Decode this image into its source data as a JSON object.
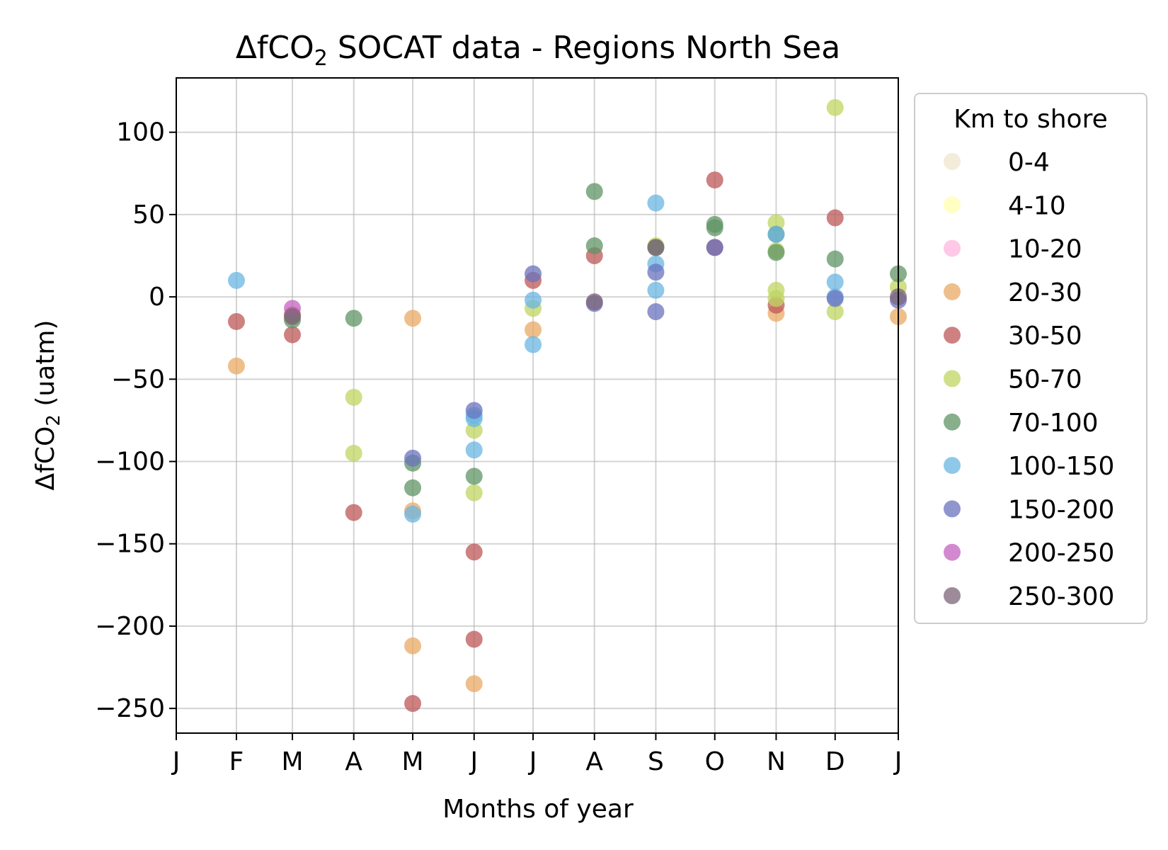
{
  "chart_data": {
    "type": "scatter",
    "title_main": "ΔfCO",
    "title_sub": "2",
    "title_rest": " SOCAT data - Regions North Sea",
    "xlabel": "Months of year",
    "ylabel_main": "ΔfCO",
    "ylabel_sub": "2",
    "ylabel_rest": " (uatm)",
    "xlim": [
      0,
      12
    ],
    "ylim": [
      -265,
      133
    ],
    "x_ticks": [
      {
        "value": 0,
        "label": "J"
      },
      {
        "value": 1,
        "label": "F"
      },
      {
        "value": 1.93,
        "label": "M"
      },
      {
        "value": 2.95,
        "label": "A"
      },
      {
        "value": 3.93,
        "label": "M"
      },
      {
        "value": 4.95,
        "label": "J"
      },
      {
        "value": 5.93,
        "label": "J"
      },
      {
        "value": 6.95,
        "label": "A"
      },
      {
        "value": 7.97,
        "label": "S"
      },
      {
        "value": 8.95,
        "label": "O"
      },
      {
        "value": 9.97,
        "label": "N"
      },
      {
        "value": 10.95,
        "label": "D"
      },
      {
        "value": 12,
        "label": "J"
      }
    ],
    "y_ticks": [
      {
        "value": 100,
        "label": "100"
      },
      {
        "value": 50,
        "label": "50"
      },
      {
        "value": 0,
        "label": "0"
      },
      {
        "value": -50,
        "label": "−50"
      },
      {
        "value": -100,
        "label": "−100"
      },
      {
        "value": -150,
        "label": "−150"
      },
      {
        "value": -200,
        "label": "−200"
      },
      {
        "value": -250,
        "label": "−250"
      }
    ],
    "grid": true,
    "legend_position": "outside right",
    "legend_title": "Km to shore",
    "series": [
      {
        "name": "0-4",
        "color": "#eee6cc",
        "points": []
      },
      {
        "name": "4-10",
        "color": "#ffffb0",
        "points": []
      },
      {
        "name": "10-20",
        "color": "#ffb6de",
        "points": []
      },
      {
        "name": "20-30",
        "color": "#eaaa64",
        "points": [
          [
            1,
            -42
          ],
          [
            3.93,
            -13
          ],
          [
            3.93,
            -130
          ],
          [
            3.93,
            -212
          ],
          [
            4.95,
            -235
          ],
          [
            5.93,
            -20
          ],
          [
            9.97,
            -10
          ],
          [
            12,
            -12
          ]
        ]
      },
      {
        "name": "30-50",
        "color": "#bd5757",
        "points": [
          [
            1,
            -15
          ],
          [
            1.93,
            -11
          ],
          [
            1.93,
            -23
          ],
          [
            2.95,
            -131
          ],
          [
            3.93,
            -247
          ],
          [
            4.95,
            -155
          ],
          [
            4.95,
            -208
          ],
          [
            5.93,
            10
          ],
          [
            6.95,
            25
          ],
          [
            8.95,
            71
          ],
          [
            8.95,
            30
          ],
          [
            9.97,
            -5
          ],
          [
            10.95,
            48
          ]
        ]
      },
      {
        "name": "50-70",
        "color": "#bfd560",
        "points": [
          [
            2.95,
            -61
          ],
          [
            2.95,
            -95
          ],
          [
            4.95,
            -81
          ],
          [
            4.95,
            -119
          ],
          [
            5.93,
            -7
          ],
          [
            7.97,
            31
          ],
          [
            9.97,
            45
          ],
          [
            9.97,
            4
          ],
          [
            9.97,
            28
          ],
          [
            9.97,
            -1
          ],
          [
            10.95,
            115
          ],
          [
            10.95,
            -9
          ],
          [
            12,
            6
          ]
        ]
      },
      {
        "name": "70-100",
        "color": "#5f9465",
        "points": [
          [
            1.93,
            -14
          ],
          [
            2.95,
            -13
          ],
          [
            3.93,
            -101
          ],
          [
            3.93,
            -116
          ],
          [
            4.95,
            -109
          ],
          [
            6.95,
            64
          ],
          [
            6.95,
            31
          ],
          [
            7.97,
            30
          ],
          [
            8.95,
            44
          ],
          [
            8.95,
            42
          ],
          [
            9.97,
            27
          ],
          [
            9.97,
            38
          ],
          [
            10.95,
            23
          ],
          [
            12,
            14
          ]
        ]
      },
      {
        "name": "100-150",
        "color": "#69b5e2",
        "points": [
          [
            1,
            10
          ],
          [
            3.93,
            -132
          ],
          [
            4.95,
            -74
          ],
          [
            4.95,
            -72
          ],
          [
            4.95,
            -93
          ],
          [
            5.93,
            -2
          ],
          [
            5.93,
            -29
          ],
          [
            7.97,
            57
          ],
          [
            7.97,
            20
          ],
          [
            7.97,
            4
          ],
          [
            9.97,
            38
          ],
          [
            10.95,
            9
          ],
          [
            10.95,
            0
          ]
        ]
      },
      {
        "name": "150-200",
        "color": "#6a73bd",
        "points": [
          [
            3.93,
            -98
          ],
          [
            4.95,
            -69
          ],
          [
            5.93,
            14
          ],
          [
            6.95,
            -4
          ],
          [
            7.97,
            15
          ],
          [
            7.97,
            -9
          ],
          [
            8.95,
            30
          ],
          [
            10.95,
            -1
          ],
          [
            12,
            -2
          ]
        ]
      },
      {
        "name": "200-250",
        "color": "#c462c0",
        "points": [
          [
            1.93,
            -7
          ]
        ]
      },
      {
        "name": "250-300",
        "color": "#7e6478",
        "points": [
          [
            1.93,
            -12
          ],
          [
            6.95,
            -3
          ],
          [
            7.97,
            30
          ],
          [
            12,
            0
          ]
        ]
      }
    ]
  }
}
